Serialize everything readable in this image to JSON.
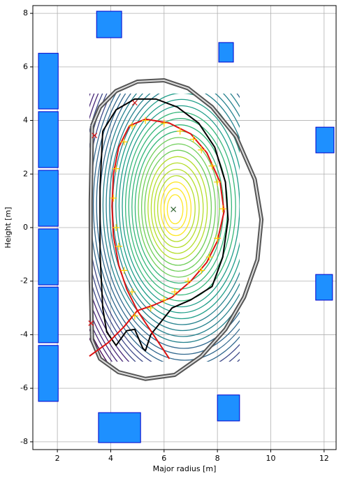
{
  "chart_data": {
    "type": "equilibrium",
    "xlabel": "Major radius [m]",
    "ylabel": "Height [m]",
    "xlim": [
      1.08,
      12.45
    ],
    "ylim": [
      -8.29,
      8.29
    ],
    "xticks": [
      2,
      4,
      6,
      8,
      10,
      12
    ],
    "yticks": [
      -8,
      -6,
      -4,
      -2,
      0,
      2,
      4,
      6,
      8
    ],
    "grid": true,
    "coils": {
      "color": "#1e90ff",
      "edge": "#0000cc",
      "r": [
        1.66,
        1.66,
        1.66,
        1.66,
        1.66,
        1.66,
        3.94,
        8.325,
        12.03,
        12.0,
        8.415,
        4.33
      ],
      "z": [
        5.47,
        3.285,
        1.095,
        -1.095,
        -3.26,
        -5.445,
        7.585,
        6.545,
        3.27,
        -2.23,
        -6.735,
        -7.47
      ],
      "dr": [
        0.74,
        0.74,
        0.74,
        0.74,
        0.74,
        0.74,
        0.94,
        0.55,
        0.68,
        0.63,
        0.83,
        1.58
      ],
      "dz": [
        2.08,
        2.09,
        2.09,
        2.09,
        2.08,
        2.09,
        0.99,
        0.73,
        0.96,
        0.96,
        0.97,
        1.12
      ]
    },
    "lines": [
      {
        "color": "#555555",
        "width": 6,
        "x": [
          3.3,
          3.6,
          4.2,
          5.0,
          6.0,
          6.9,
          7.8,
          8.7,
          9.4,
          9.65,
          9.5,
          9.0,
          8.3,
          7.4,
          6.4,
          5.3,
          4.3,
          3.6,
          3.3,
          3.25,
          3.25,
          3.3
        ],
        "y": [
          3.8,
          4.5,
          5.1,
          5.45,
          5.5,
          5.2,
          4.5,
          3.4,
          1.8,
          0.3,
          -1.2,
          -2.6,
          -3.8,
          -4.8,
          -5.5,
          -5.65,
          -5.4,
          -4.9,
          -4.2,
          -2.0,
          1.0,
          3.8
        ]
      },
      {
        "color": "#000000",
        "width": 2,
        "x": [
          3.7,
          4.2,
          4.9,
          5.7,
          6.5,
          7.3,
          7.9,
          8.3,
          8.4,
          8.2,
          7.8,
          7.0,
          6.3,
          5.9,
          5.5,
          5.3,
          5.2,
          4.9,
          4.6,
          4.2,
          3.85,
          3.7,
          3.6,
          3.6,
          3.7
        ],
        "y": [
          3.6,
          4.4,
          4.8,
          4.8,
          4.5,
          3.9,
          3.0,
          1.7,
          0.3,
          -1.1,
          -2.2,
          -2.7,
          -3.0,
          -3.5,
          -4.0,
          -4.6,
          -4.5,
          -3.8,
          -3.85,
          -4.4,
          -3.9,
          -3.0,
          -1.0,
          1.5,
          3.6
        ]
      },
      {
        "color": "#dd1111",
        "width": 2,
        "x": [
          3.2,
          3.9,
          4.5,
          5.0,
          5.6,
          6.3,
          7.0,
          7.6,
          8.0,
          8.25,
          8.1,
          7.6,
          7.0,
          6.2,
          5.3,
          4.7,
          4.3,
          4.1,
          4.05,
          4.1,
          4.3,
          4.6,
          5.0,
          5.6,
          6.2
        ],
        "y": [
          -4.8,
          -4.3,
          -3.7,
          -3.1,
          -2.9,
          -2.6,
          -2.0,
          -1.3,
          -0.5,
          0.6,
          1.7,
          2.8,
          3.5,
          3.9,
          4.05,
          3.8,
          3.0,
          2.0,
          0.8,
          -0.3,
          -1.4,
          -2.3,
          -3.1,
          -4.0,
          -4.9
        ]
      }
    ],
    "markers": [
      {
        "color": "#ffcc00",
        "symbol": "+",
        "x": [
          4.8,
          5.3,
          6.0,
          6.6,
          7.1,
          7.4,
          7.8,
          8.0,
          8.2,
          8.0,
          7.7,
          7.4,
          6.9,
          6.4,
          6.0,
          5.5,
          4.9,
          4.8,
          4.5,
          4.3,
          4.2,
          4.1,
          4.2,
          4.5
        ],
        "y": [
          3.8,
          4.0,
          3.9,
          3.6,
          3.3,
          2.9,
          2.3,
          1.7,
          0.7,
          -0.4,
          -1.1,
          -1.6,
          -2.0,
          -2.4,
          -2.7,
          -3.0,
          -3.3,
          -2.4,
          -1.6,
          -0.7,
          0.0,
          1.1,
          2.2,
          3.2
        ]
      },
      {
        "color": "#dd1111",
        "symbol": "x",
        "x": [
          4.9,
          3.39,
          3.26
        ],
        "y": [
          4.66,
          3.44,
          -3.57
        ]
      },
      {
        "color": "#336633",
        "symbol": "x",
        "x": [
          6.35
        ],
        "y": [
          0.68
        ]
      }
    ]
  }
}
